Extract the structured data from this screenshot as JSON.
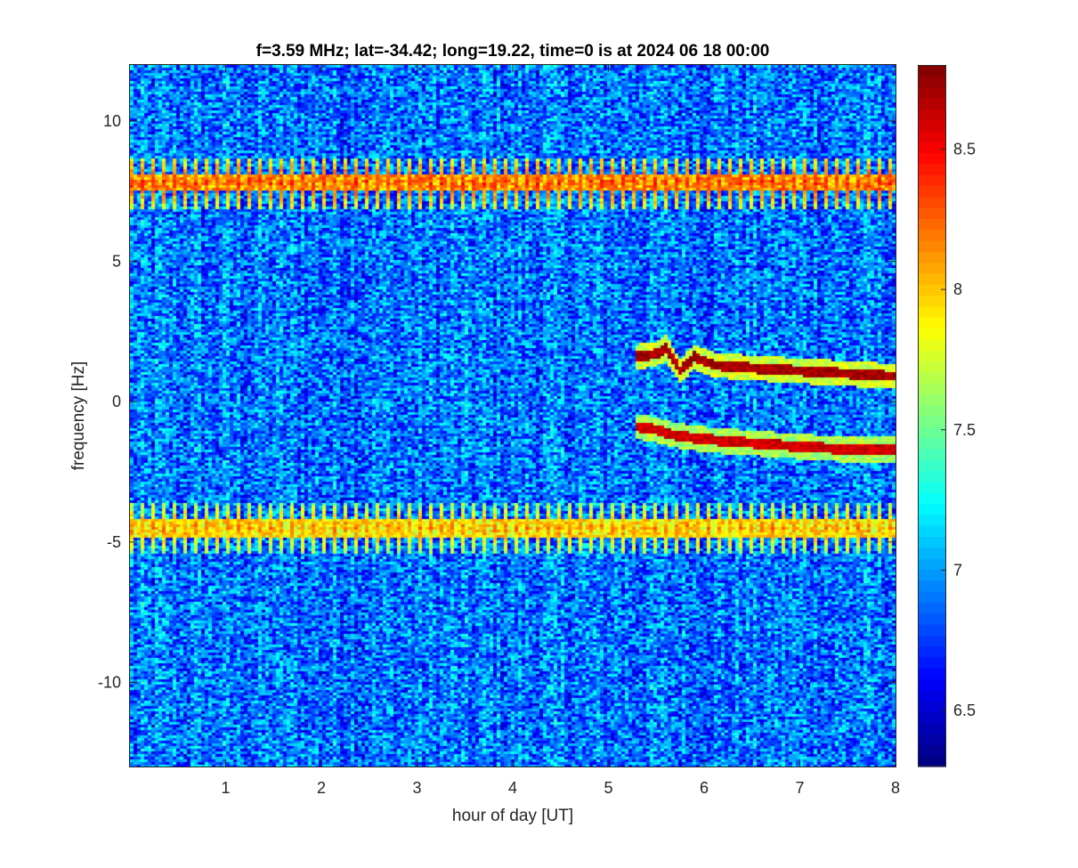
{
  "chart_data": {
    "type": "heatmap",
    "title": "f=3.59 MHz;  lat=-34.42; long=19.22, time=0 is at 2024 06 18 00:00",
    "xlabel": "hour of day [UT]",
    "ylabel": "frequency [Hz]",
    "xlim": [
      0,
      8
    ],
    "ylim": [
      -13,
      12
    ],
    "xticks": [
      1,
      2,
      3,
      4,
      5,
      6,
      7,
      8
    ],
    "yticks": [
      -10,
      -5,
      0,
      5,
      10
    ],
    "colorbar": {
      "colormap": "jet",
      "range": [
        6.3,
        8.8
      ],
      "ticks": [
        6.5,
        7,
        7.5,
        8,
        8.5
      ],
      "tick_labels": [
        "6.5",
        "7",
        "7.5",
        "8",
        "8.5"
      ]
    },
    "background_level": 6.9,
    "bands": [
      {
        "freq_center": 7.8,
        "freq_halfwidth": 0.9,
        "x_start": 0,
        "x_end": 8,
        "level": 8.4
      },
      {
        "freq_center": -4.5,
        "freq_halfwidth": 0.9,
        "x_start": 0,
        "x_end": 8,
        "level": 8.2
      }
    ],
    "traces": [
      {
        "x": [
          5.3,
          5.5,
          5.6,
          5.75,
          5.9,
          6.1,
          6.5,
          7.0,
          7.5,
          8.0
        ],
        "y": [
          1.6,
          1.7,
          1.9,
          1.1,
          1.6,
          1.3,
          1.2,
          1.1,
          1.0,
          0.9
        ],
        "level": 8.8
      },
      {
        "x": [
          5.3,
          5.5,
          5.7,
          5.9,
          6.2,
          6.6,
          7.0,
          7.5,
          8.0
        ],
        "y": [
          -0.9,
          -1.0,
          -1.2,
          -1.3,
          -1.4,
          -1.5,
          -1.6,
          -1.7,
          -1.7
        ],
        "level": 8.7
      }
    ],
    "grid": false,
    "colorbar_placement": "right"
  }
}
